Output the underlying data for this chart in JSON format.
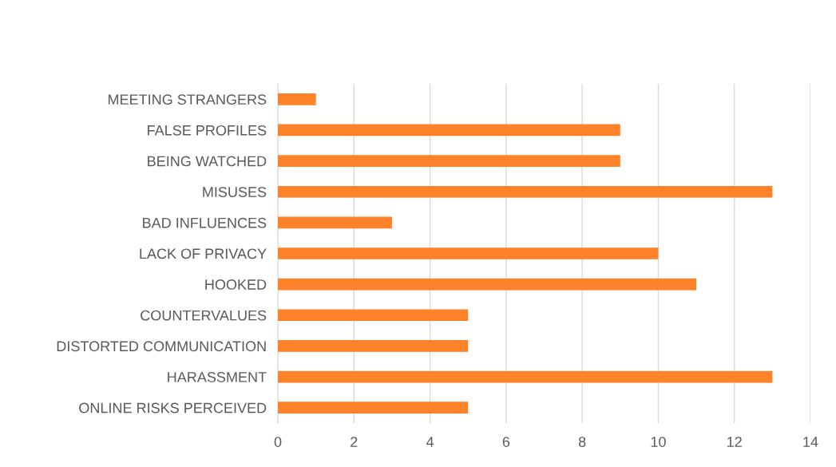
{
  "chart_data": {
    "type": "bar",
    "orientation": "horizontal",
    "categories": [
      "MEETING STRANGERS",
      "FALSE PROFILES",
      "BEING WATCHED",
      "MISUSES",
      "BAD INFLUENCES",
      "LACK OF PRIVACY",
      "HOOKED",
      "COUNTERVALUES",
      "DISTORTED COMMUNICATION",
      "HARASSMENT",
      "ONLINE RISKS PERCEIVED"
    ],
    "values": [
      1,
      9,
      9,
      13,
      3,
      10,
      11,
      5,
      5,
      13,
      5
    ],
    "color": "#fd8229",
    "xlim": [
      0,
      14
    ],
    "xticks": [
      0,
      2,
      4,
      6,
      8,
      10,
      12,
      14
    ],
    "grid": "x"
  }
}
